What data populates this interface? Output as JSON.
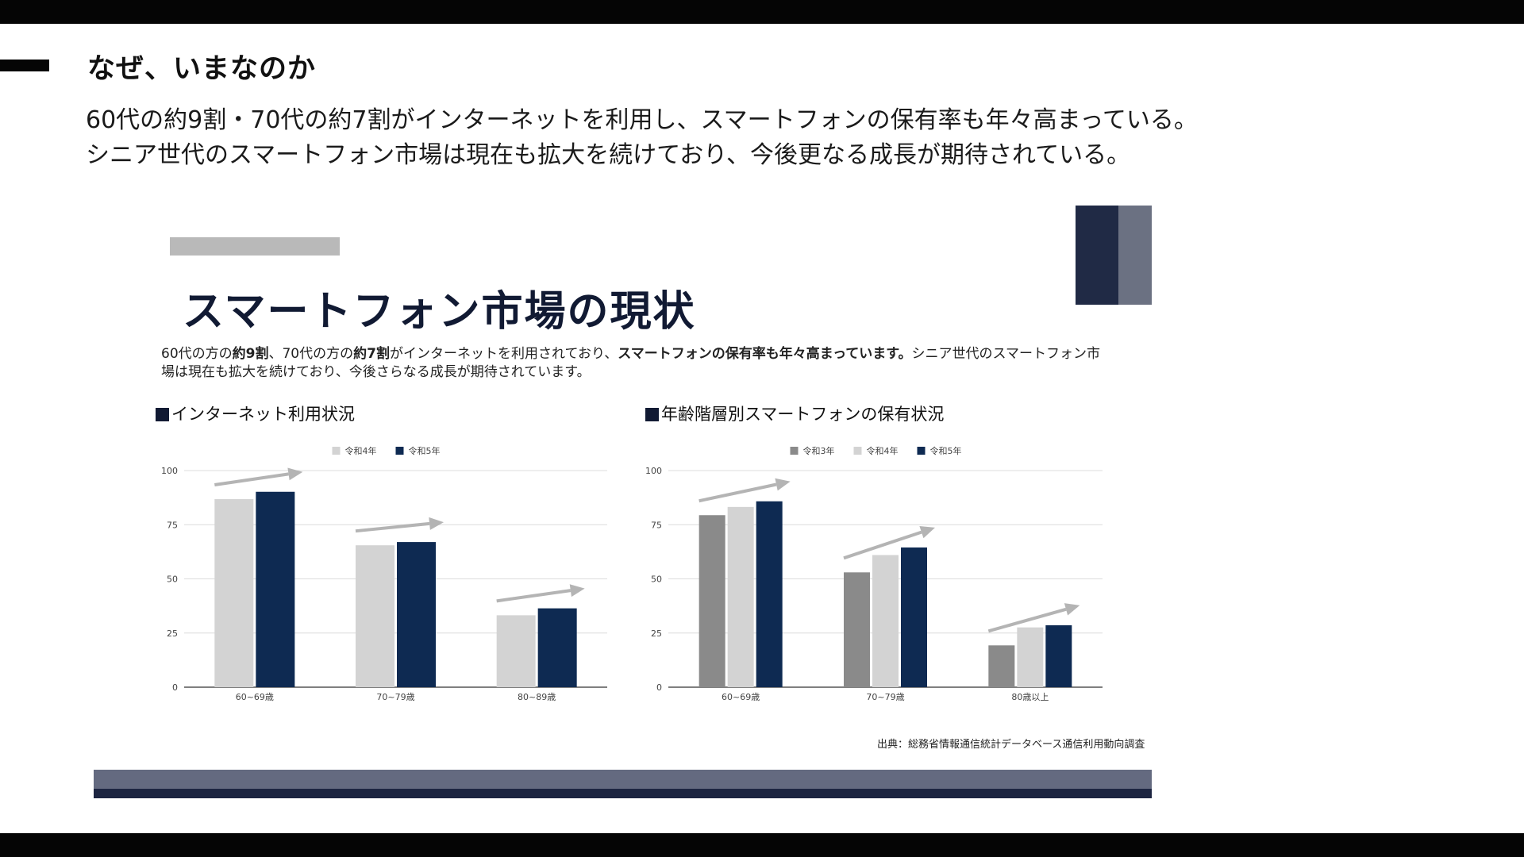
{
  "page": {
    "heading": "なぜ、いまなのか",
    "lead_lines": [
      "60代の約9割・70代の約7割がインターネットを利用し、スマートフォンの保有率も年々高まっている。",
      "シニア世代のスマートフォン市場は現在も拡大を続けており、今後更なる成長が期待されている。"
    ]
  },
  "slide": {
    "title": "スマートフォン市場の現状",
    "desc": {
      "p1": "60代の方の",
      "b1": "約9割",
      "p2": "、70代の方の",
      "b2": "約7割",
      "p3": "がインターネットを利用されており、",
      "b3": "スマートフォンの保有率も年々高まっています。",
      "p4": "シニア世代のスマートフォン市場は現在も拡大を続けており、今後さらなる成長が期待されています。"
    },
    "source": "出典：総務省情報通信統計データベース通信利用動向調査",
    "colors": {
      "navy": "#0e2a52",
      "light_gray": "#d3d3d3",
      "mid_gray": "#8a8a8a",
      "arrow": "#b4b4b4"
    }
  },
  "chart_data": [
    {
      "type": "bar",
      "title": "インターネット利用状況",
      "categories": [
        "60~69歳",
        "70~79歳",
        "80~89歳"
      ],
      "series": [
        {
          "name": "令和4年",
          "values": [
            86.8,
            65.5,
            33.2
          ],
          "color": "#d3d3d3"
        },
        {
          "name": "令和5年",
          "values": [
            90.2,
            67.0,
            36.4
          ],
          "color": "#0e2a52"
        }
      ],
      "ylim": [
        0,
        100
      ],
      "yticks": [
        0,
        25,
        50,
        75,
        100
      ],
      "legend": "top-center",
      "grid": true
    },
    {
      "type": "bar",
      "title": "年齢階層別スマートフォンの保有状況",
      "categories": [
        "60~69歳",
        "70~79歳",
        "80歳以上"
      ],
      "series": [
        {
          "name": "令和3年",
          "values": [
            79.4,
            53.0,
            19.3
          ],
          "color": "#8a8a8a"
        },
        {
          "name": "令和4年",
          "values": [
            83.2,
            61.0,
            27.6
          ],
          "color": "#d3d3d3"
        },
        {
          "name": "令和5年",
          "values": [
            85.8,
            64.5,
            28.6
          ],
          "color": "#0e2a52"
        }
      ],
      "ylim": [
        0,
        100
      ],
      "yticks": [
        0,
        25,
        50,
        75,
        100
      ],
      "legend": "top-center",
      "grid": true
    }
  ]
}
